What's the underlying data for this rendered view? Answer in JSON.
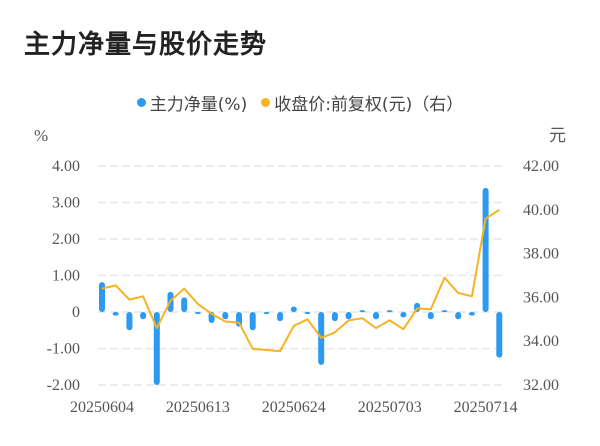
{
  "title": "主力净量与股价走势",
  "legend": [
    {
      "label": "主力净量(%)",
      "color": "#2b9af0"
    },
    {
      "label": "收盘价:前复权(元)（右）",
      "color": "#f6b322"
    }
  ],
  "axes": {
    "left_unit": "%",
    "right_unit": "元",
    "left_ticks": [
      "4.00",
      "3.00",
      "2.00",
      "1.00",
      "0",
      "-1.00",
      "-2.00"
    ],
    "right_ticks": [
      "42.00",
      "40.00",
      "38.00",
      "36.00",
      "34.00",
      "32.00"
    ],
    "x_ticks": [
      "20250604",
      "20250613",
      "20250624",
      "20250703",
      "20250714"
    ]
  },
  "chart_data": {
    "type": "bar+line",
    "title": "主力净量与股价走势",
    "x": [
      "20250604",
      "20250605",
      "20250606",
      "20250609",
      "20250610",
      "20250611",
      "20250612",
      "20250613",
      "20250616",
      "20250617",
      "20250618",
      "20250619",
      "20250620",
      "20250623",
      "20250624",
      "20250625",
      "20250626",
      "20250627",
      "20250630",
      "20250701",
      "20250702",
      "20250703",
      "20250704",
      "20250707",
      "20250708",
      "20250709",
      "20250710",
      "20250711",
      "20250714",
      "20250715"
    ],
    "series": [
      {
        "name": "主力净量(%)",
        "type": "bar",
        "axis": "left",
        "color": "#2b9af0",
        "values": [
          0.82,
          -0.1,
          -0.5,
          -0.2,
          -2.0,
          0.55,
          0.4,
          -0.03,
          -0.3,
          -0.2,
          -0.4,
          -0.5,
          -0.05,
          -0.25,
          0.15,
          -0.05,
          -1.45,
          -0.25,
          -0.2,
          0.05,
          -0.2,
          0.05,
          -0.15,
          0.25,
          -0.2,
          0.05,
          -0.2,
          -0.1,
          3.4,
          -1.25
        ]
      },
      {
        "name": "收盘价:前复权(元)",
        "type": "line",
        "axis": "right",
        "color": "#f6b322",
        "values": [
          36.4,
          36.55,
          35.9,
          36.05,
          34.6,
          35.85,
          36.4,
          35.7,
          35.25,
          34.9,
          34.85,
          33.65,
          33.6,
          33.55,
          34.7,
          35.0,
          34.15,
          34.4,
          34.95,
          35.05,
          34.6,
          34.95,
          34.55,
          35.5,
          35.45,
          36.9,
          36.2,
          36.05,
          39.6,
          40.0
        ]
      }
    ],
    "ylim_left": [
      -2,
      4
    ],
    "ylim_right": [
      32,
      42
    ],
    "ylabel_left": "%",
    "ylabel_right": "元",
    "grid": true,
    "legend_position": "top"
  }
}
